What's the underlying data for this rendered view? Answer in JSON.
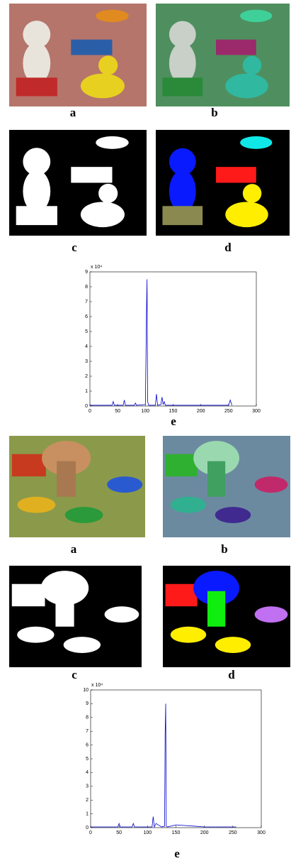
{
  "figures": [
    {
      "labels": [
        "a",
        "b",
        "c",
        "d",
        "e"
      ]
    },
    {
      "labels": [
        "a",
        "b",
        "c",
        "d",
        "e"
      ]
    }
  ],
  "chart_data": [
    {
      "type": "line",
      "multiplier": "x 10⁴",
      "x": [
        0,
        40,
        42,
        44,
        60,
        62,
        64,
        80,
        82,
        84,
        100,
        102,
        103,
        104,
        106,
        118,
        120,
        122,
        128,
        130,
        132,
        134,
        136,
        150,
        200,
        250,
        253,
        256
      ],
      "series": [
        {
          "color": "#0000cc",
          "values": [
            0.05,
            0.05,
            0.3,
            0.05,
            0.05,
            0.4,
            0.05,
            0.05,
            0.2,
            0.05,
            0.1,
            6.3,
            8.5,
            0.3,
            0.05,
            0.05,
            0.8,
            0.05,
            0.1,
            0.6,
            0.1,
            0.3,
            0.05,
            0.05,
            0.05,
            0.05,
            0.4,
            0.05
          ]
        }
      ],
      "xlim": [
        0,
        300
      ],
      "xticks": [
        0,
        50,
        100,
        150,
        200,
        250,
        300
      ],
      "ylim": [
        0,
        9
      ],
      "yticks": [
        0,
        1,
        2,
        3,
        4,
        5,
        6,
        7,
        8,
        9
      ]
    },
    {
      "type": "line",
      "multiplier": "x 10⁴",
      "x": [
        0,
        20,
        48,
        50,
        52,
        73,
        75,
        77,
        100,
        108,
        110,
        112,
        115,
        125,
        130,
        131,
        132,
        133,
        135,
        150,
        185,
        200,
        256
      ],
      "series": [
        {
          "color": "#0000cc",
          "values": [
            0.05,
            0.05,
            0.05,
            0.3,
            0.05,
            0.05,
            0.3,
            0.05,
            0.05,
            0.05,
            0.8,
            0.05,
            0.3,
            0.05,
            0.1,
            6.8,
            9.0,
            0.1,
            0.05,
            0.2,
            0.1,
            0.05,
            0.05
          ]
        }
      ],
      "xlim": [
        0,
        300
      ],
      "xticks": [
        0,
        50,
        100,
        150,
        200,
        250,
        300
      ],
      "ylim": [
        0,
        10
      ],
      "yticks": [
        0,
        1,
        2,
        3,
        4,
        5,
        6,
        7,
        8,
        9,
        10
      ]
    }
  ]
}
